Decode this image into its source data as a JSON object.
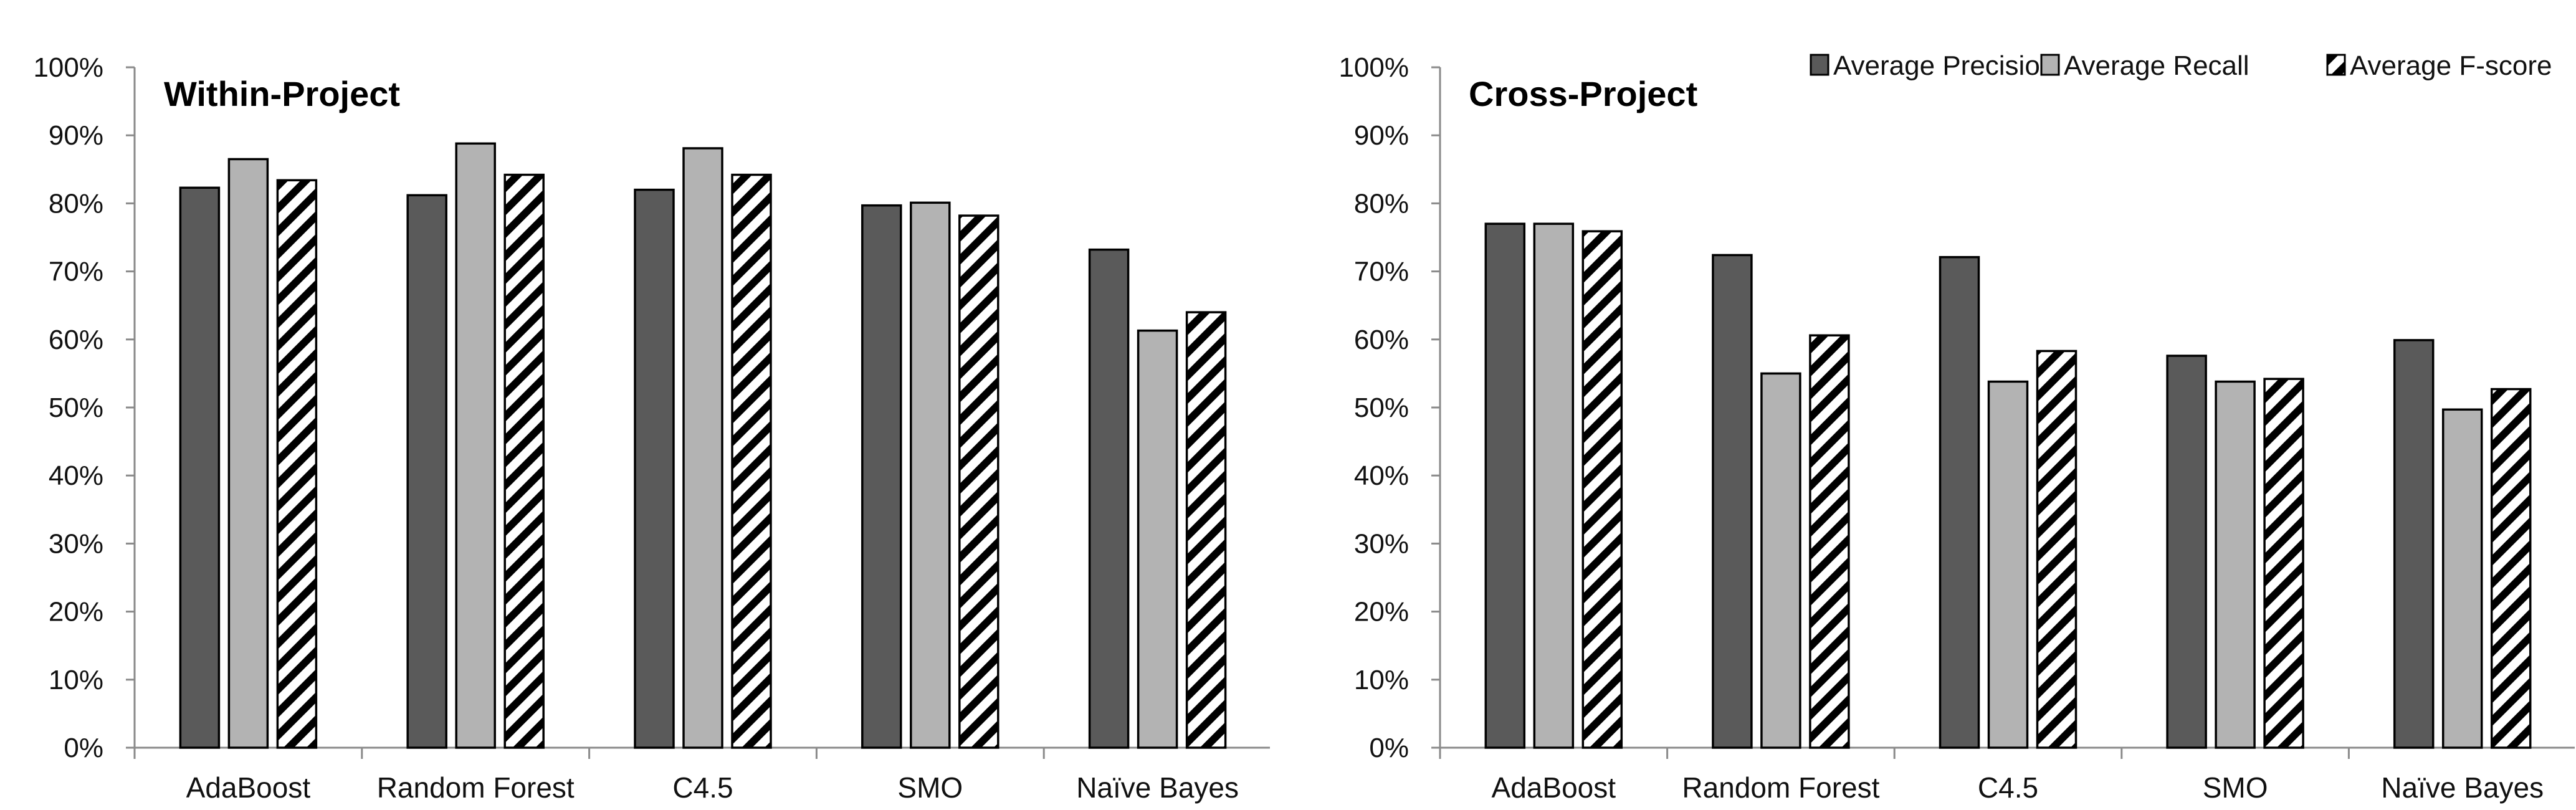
{
  "chart_data": [
    {
      "type": "bar",
      "title": "Within-Project",
      "categories": [
        "AdaBoost",
        "Random Forest",
        "C4.5",
        "SMO",
        "Naïve Bayes"
      ],
      "series": [
        {
          "name": "Average Precision",
          "values": [
            82.3,
            81.2,
            82.0,
            79.7,
            73.2
          ]
        },
        {
          "name": "Average Recall",
          "values": [
            86.5,
            88.8,
            88.1,
            80.1,
            61.3
          ]
        },
        {
          "name": "Average F-score",
          "values": [
            83.4,
            84.2,
            84.2,
            78.2,
            64.0
          ]
        }
      ],
      "ylim": [
        0,
        100
      ],
      "yticks": [
        "0%",
        "10%",
        "20%",
        "30%",
        "40%",
        "50%",
        "60%",
        "70%",
        "80%",
        "90%",
        "100%"
      ],
      "xlabel": "",
      "ylabel": "",
      "grid": false,
      "legend": false
    },
    {
      "type": "bar",
      "title": "Cross-Project",
      "categories": [
        "AdaBoost",
        "Random Forest",
        "C4.5",
        "SMO",
        "Naïve Bayes"
      ],
      "series": [
        {
          "name": "Average Precision",
          "values": [
            77.0,
            72.4,
            72.1,
            57.6,
            59.9
          ]
        },
        {
          "name": "Average Recall",
          "values": [
            77.0,
            55.0,
            53.8,
            53.8,
            49.7
          ]
        },
        {
          "name": "Average F-score",
          "values": [
            75.9,
            60.6,
            58.3,
            54.2,
            52.7
          ]
        }
      ],
      "ylim": [
        0,
        100
      ],
      "yticks": [
        "0%",
        "10%",
        "20%",
        "30%",
        "40%",
        "50%",
        "60%",
        "70%",
        "80%",
        "90%",
        "100%"
      ],
      "xlabel": "",
      "ylabel": "",
      "grid": false,
      "legend": "top-right"
    }
  ],
  "styles": {
    "precision_fill": "#5a5a5a",
    "recall_fill": "#b3b3b3",
    "fscore_pattern": "diagonal-hatch",
    "fscore_stripe": "#000000",
    "fscore_background": "#ffffff",
    "axis_color": "#8a8a8a"
  }
}
